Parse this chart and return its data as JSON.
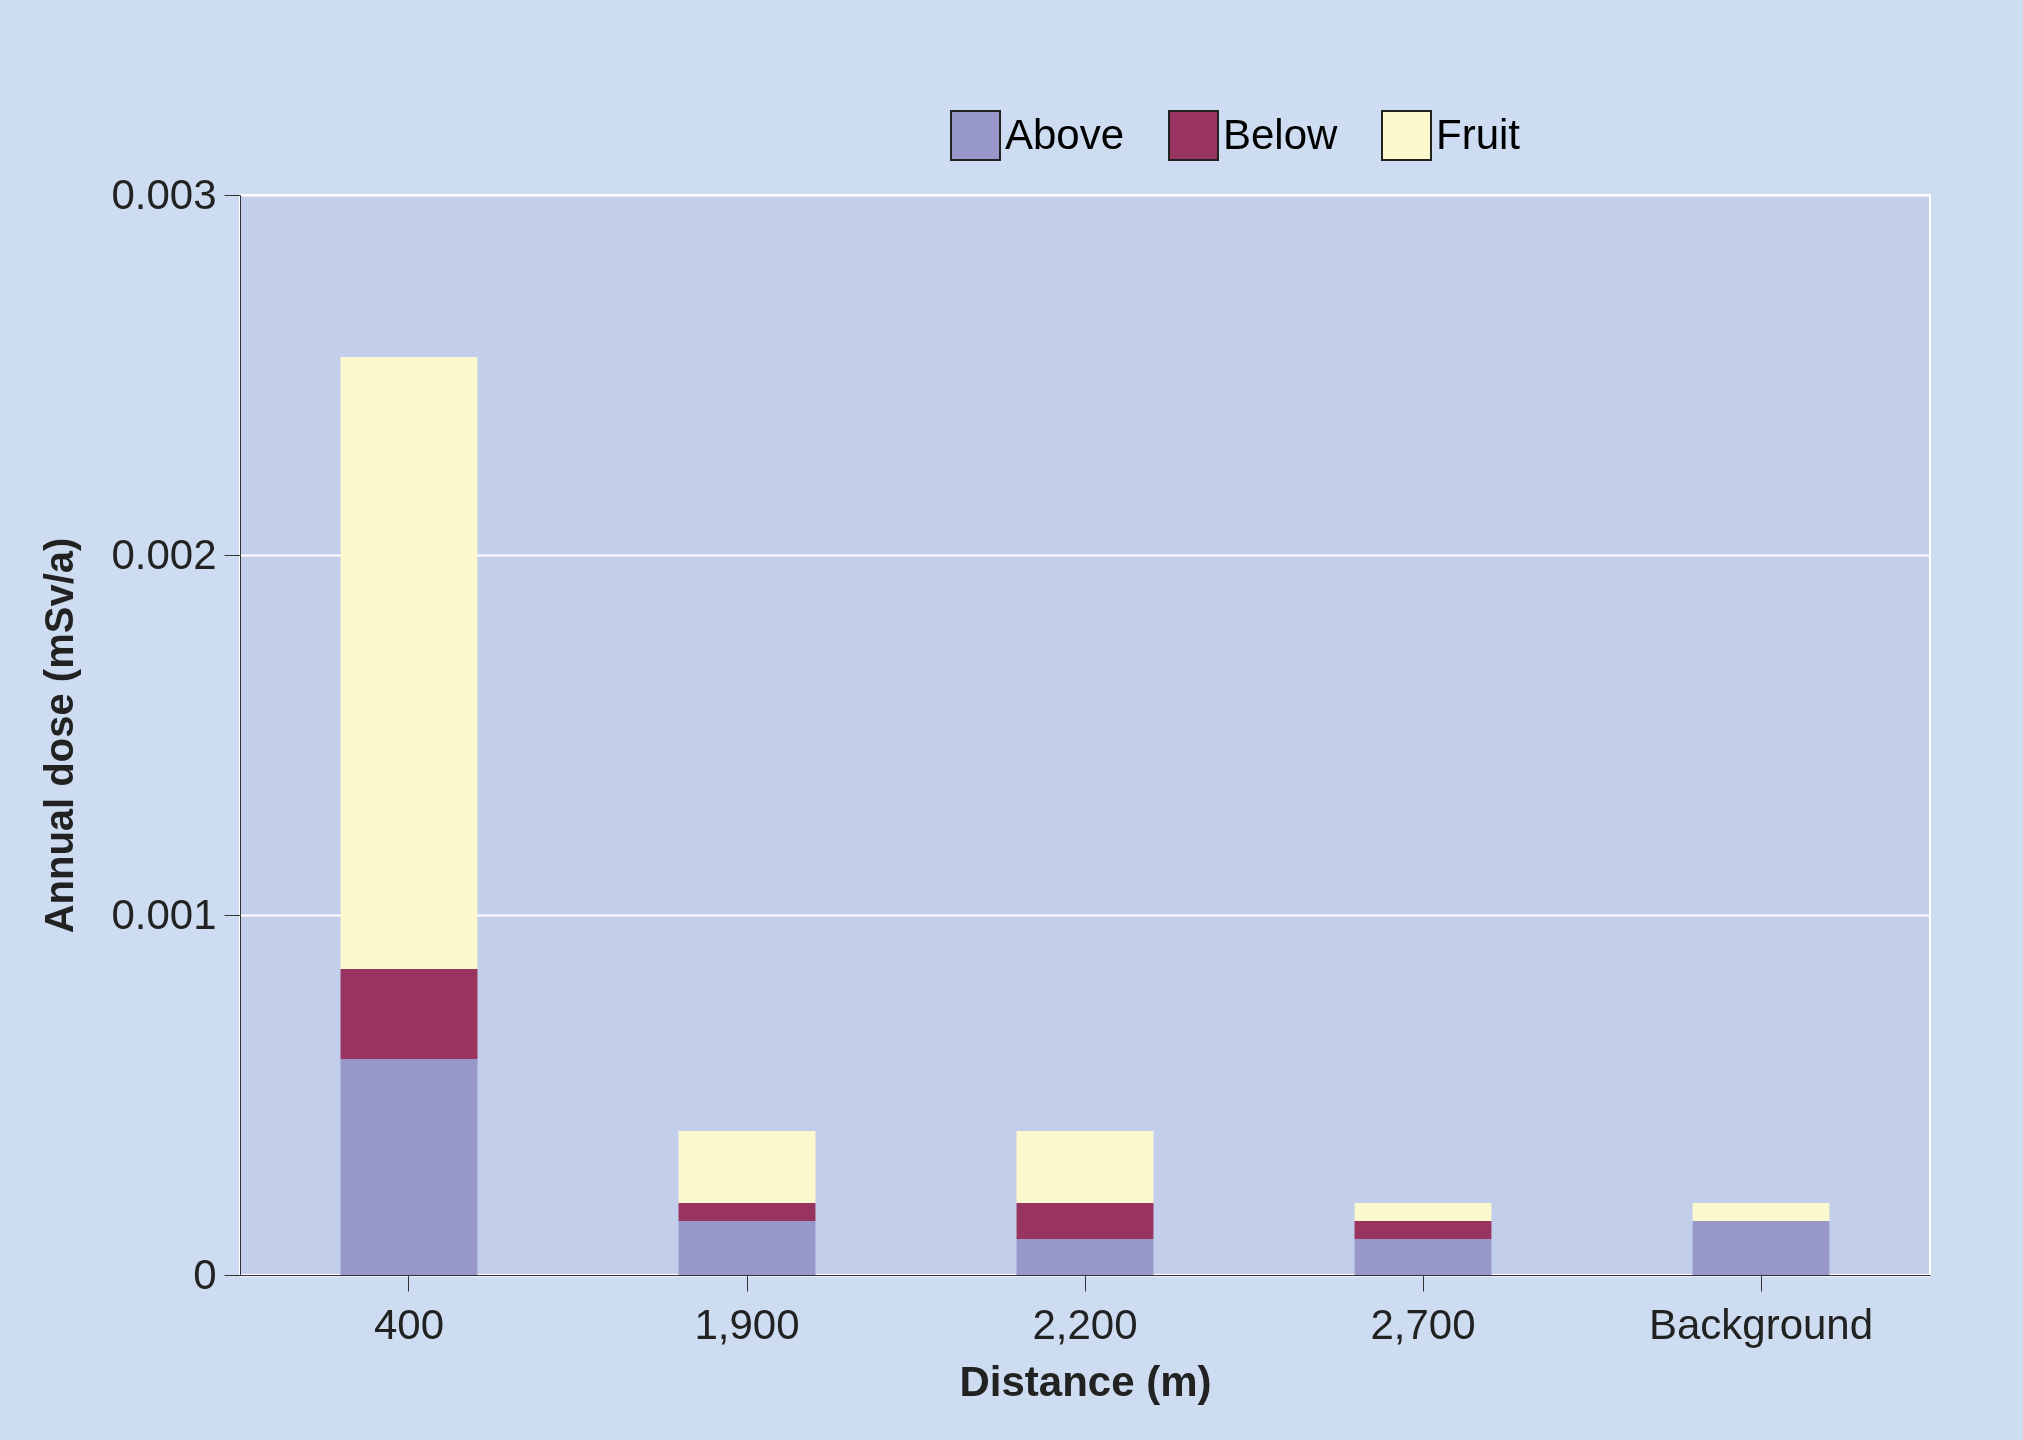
{
  "chart_data": {
    "type": "bar",
    "stacked": true,
    "xlabel": "Distance (m)",
    "ylabel": "Annual dose (mSv/a)",
    "categories": [
      "400",
      "1,900",
      "2,200",
      "2,700",
      "Background"
    ],
    "series": [
      {
        "name": "Above",
        "color": "#9797c9",
        "values": [
          0.0006,
          0.00015,
          0.0001,
          0.0001,
          0.00015
        ]
      },
      {
        "name": "Below",
        "color": "#993360",
        "values": [
          0.00025,
          5e-05,
          0.0001,
          5e-05,
          0
        ]
      },
      {
        "name": "Fruit",
        "color": "#fdf9ce",
        "values": [
          0.0017,
          0.0002,
          0.0002,
          5e-05,
          5e-05
        ]
      }
    ],
    "ylim": [
      0,
      0.003
    ],
    "yticks": [
      0,
      0.001,
      0.002,
      0.003
    ],
    "grid": "y",
    "legend": "top right"
  }
}
